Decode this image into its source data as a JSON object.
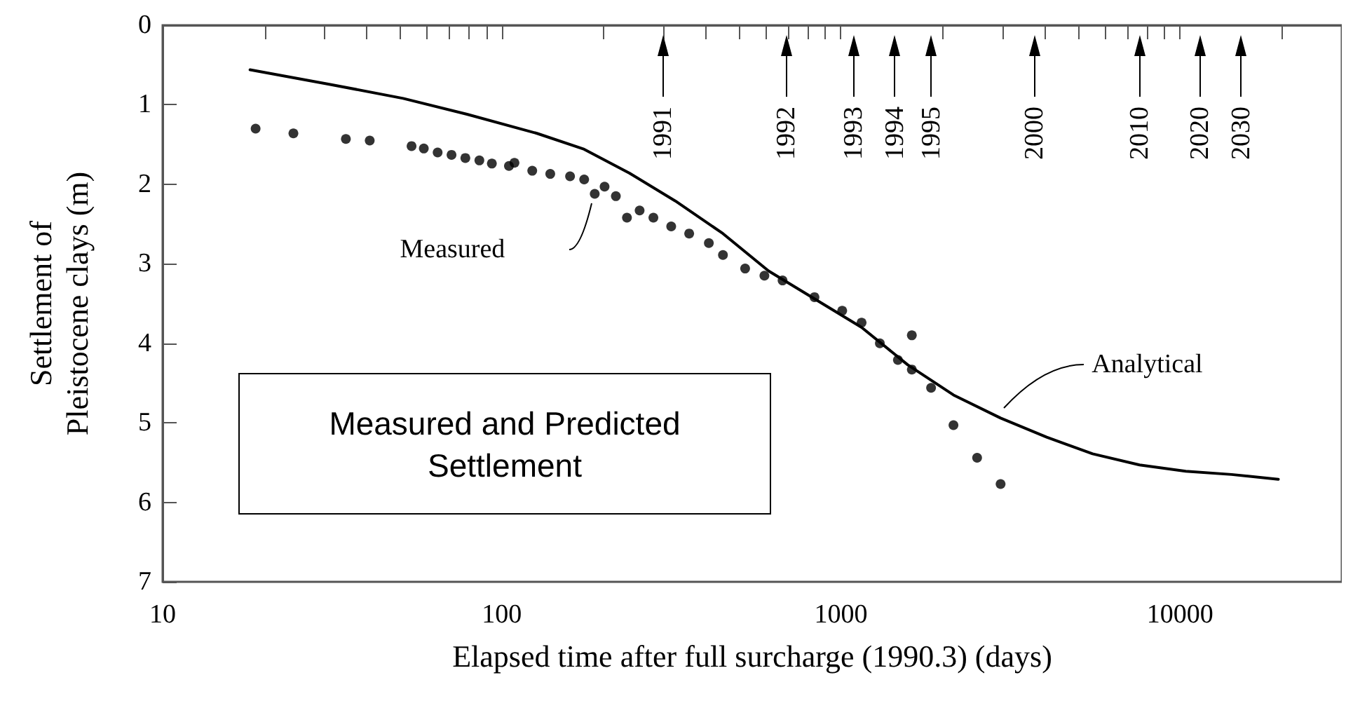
{
  "chart_data": {
    "type": "scatter",
    "title": "Measured and Predicted Settlement",
    "xlabel": "Elapsed time after full surcharge (1990.3) (days)",
    "ylabel": "Settlement of\nPleistocene clays (m)",
    "log": "x",
    "xlim": [
      10,
      30000
    ],
    "xticks": [
      10,
      {
        "value": 20,
        "label": null
      },
      {
        "value": 30,
        "label": null
      },
      {
        "value": 40,
        "label": null
      },
      {
        "value": 50,
        "label": null
      },
      {
        "value": 60,
        "label": null
      },
      {
        "value": 70,
        "label": null
      },
      {
        "value": 80,
        "label": null
      },
      {
        "value": 90,
        "label": null
      },
      100,
      {
        "value": 200,
        "label": null
      },
      {
        "value": 300,
        "label": null
      },
      {
        "value": 400,
        "label": null
      },
      {
        "value": 500,
        "label": null
      },
      {
        "value": 600,
        "label": null
      },
      {
        "value": 700,
        "label": null
      },
      {
        "value": 800,
        "label": null
      },
      {
        "value": 900,
        "label": null
      },
      1000,
      {
        "value": 2000,
        "label": null
      },
      {
        "value": 3000,
        "label": null
      },
      {
        "value": 4000,
        "label": null
      },
      {
        "value": 5000,
        "label": null
      },
      {
        "value": 6000,
        "label": null
      },
      {
        "value": 7000,
        "label": null
      },
      {
        "value": 8000,
        "label": null
      },
      {
        "value": 9000,
        "label": null
      },
      10000,
      {
        "value": 20000,
        "label": null
      }
    ],
    "ylim": [
      7,
      0
    ],
    "yticks": [
      0,
      1,
      2,
      3,
      4,
      5,
      6,
      7
    ],
    "grid": false,
    "legend": false,
    "series": [
      {
        "name": "Measured",
        "type": "scatter",
        "marker": "circle",
        "color": "#000000",
        "x": [
          18.8,
          24.3,
          34.7,
          40.8,
          54.2,
          58.9,
          64.7,
          71.1,
          78.1,
          85.9,
          93.5,
          105,
          109,
          123,
          139,
          159,
          175,
          188,
          201,
          217,
          234,
          255,
          280,
          316,
          357,
          408,
          449,
          522,
          595,
          673,
          836,
          1009,
          1151,
          1303,
          1473,
          1619,
          1619,
          1845,
          2148,
          2522,
          2958
        ],
        "values": [
          1.3,
          1.36,
          1.43,
          1.45,
          1.52,
          1.55,
          1.6,
          1.63,
          1.67,
          1.7,
          1.74,
          1.77,
          1.73,
          1.83,
          1.87,
          1.9,
          1.94,
          2.12,
          2.03,
          2.15,
          2.42,
          2.33,
          2.42,
          2.53,
          2.62,
          2.74,
          2.89,
          3.06,
          3.15,
          3.21,
          3.42,
          3.59,
          3.74,
          4.0,
          4.21,
          4.33,
          3.9,
          4.56,
          5.03,
          5.44,
          5.77
        ]
      },
      {
        "name": "Analytical",
        "type": "line",
        "marker": "none",
        "line_style": "solid",
        "color": "#000000",
        "x": [
          18.1,
          30.8,
          51.2,
          79,
          127,
          175,
          238,
          325,
          449,
          612,
          836,
          1151,
          1574,
          2148,
          2958,
          4045,
          5525,
          7600,
          10400,
          14200,
          19500
        ],
        "values": [
          0.56,
          0.74,
          0.92,
          1.12,
          1.36,
          1.56,
          1.86,
          2.21,
          2.62,
          3.09,
          3.44,
          3.8,
          4.27,
          4.65,
          4.94,
          5.18,
          5.39,
          5.53,
          5.61,
          5.65,
          5.71
        ]
      }
    ],
    "annotations": [
      "1991",
      "1992",
      "1993",
      "1994",
      "1995",
      "2000",
      "2010",
      "2020",
      "2030"
    ]
  }
}
